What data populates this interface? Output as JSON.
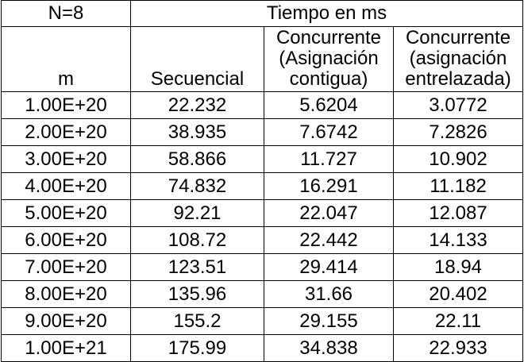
{
  "table": {
    "corner_label": "N=8",
    "group_header": "Tiempo en ms",
    "columns": {
      "m": "m",
      "secuencial": "Secuencial",
      "contigua": [
        "Concurrente",
        "(Asignación",
        "contigua)"
      ],
      "entrelazada": [
        "Concurrente",
        "(asignación",
        "entrelazada)"
      ]
    },
    "rows": [
      {
        "m": "1.00E+20",
        "secuencial": "22.232",
        "contigua": "5.6204",
        "entrelazada": "3.0772"
      },
      {
        "m": "2.00E+20",
        "secuencial": "38.935",
        "contigua": "7.6742",
        "entrelazada": "7.2826"
      },
      {
        "m": "3.00E+20",
        "secuencial": "58.866",
        "contigua": "11.727",
        "entrelazada": "10.902"
      },
      {
        "m": "4.00E+20",
        "secuencial": "74.832",
        "contigua": "16.291",
        "entrelazada": "11.182"
      },
      {
        "m": "5.00E+20",
        "secuencial": "92.21",
        "contigua": "22.047",
        "entrelazada": "12.087"
      },
      {
        "m": "6.00E+20",
        "secuencial": "108.72",
        "contigua": "22.442",
        "entrelazada": "14.133"
      },
      {
        "m": "7.00E+20",
        "secuencial": "123.51",
        "contigua": "29.414",
        "entrelazada": "18.94"
      },
      {
        "m": "8.00E+20",
        "secuencial": "135.96",
        "contigua": "31.66",
        "entrelazada": "20.402"
      },
      {
        "m": "9.00E+20",
        "secuencial": "155.2",
        "contigua": "29.155",
        "entrelazada": "22.11"
      },
      {
        "m": "1.00E+21",
        "secuencial": "175.99",
        "contigua": "34.838",
        "entrelazada": "22.933"
      }
    ]
  }
}
